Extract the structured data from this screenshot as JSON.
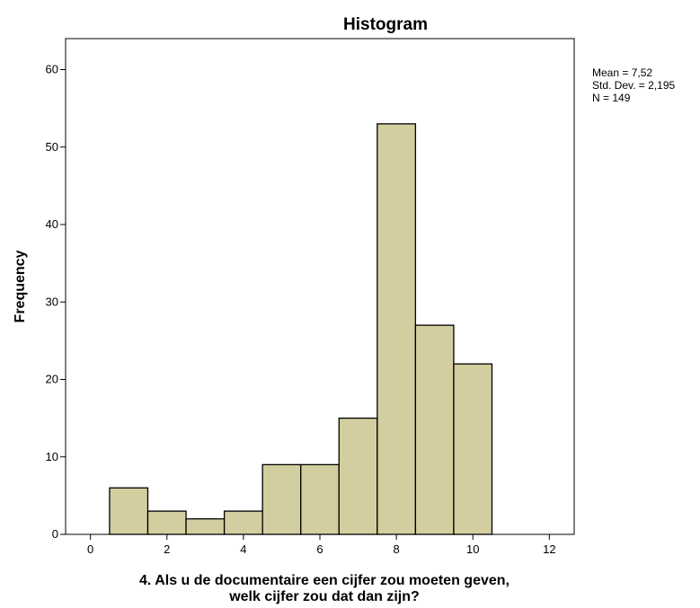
{
  "chart_data": {
    "type": "bar",
    "title": "Histogram",
    "xlabel_lines": [
      "4. Als u de documentaire een cijfer zou moeten geven,",
      "welk cijfer zou dat dan zijn?"
    ],
    "ylabel": "Frequency",
    "bins": [
      {
        "start": 0.5,
        "end": 1.5,
        "count": 6
      },
      {
        "start": 1.5,
        "end": 2.5,
        "count": 3
      },
      {
        "start": 2.5,
        "end": 3.5,
        "count": 2
      },
      {
        "start": 3.5,
        "end": 4.5,
        "count": 3
      },
      {
        "start": 4.5,
        "end": 5.5,
        "count": 9
      },
      {
        "start": 5.5,
        "end": 6.5,
        "count": 9
      },
      {
        "start": 6.5,
        "end": 7.5,
        "count": 15
      },
      {
        "start": 7.5,
        "end": 8.5,
        "count": 53
      },
      {
        "start": 8.5,
        "end": 9.5,
        "count": 27
      },
      {
        "start": 9.5,
        "end": 10.5,
        "count": 22
      }
    ],
    "xlim": [
      -0.65,
      12.65
    ],
    "ylim": [
      0,
      64
    ],
    "x_ticks": [
      0,
      2,
      4,
      6,
      8,
      10,
      12
    ],
    "y_ticks": [
      0,
      10,
      20,
      30,
      40,
      50,
      60
    ],
    "bar_color": "#d3ce9f",
    "bar_edge_color": "#000000",
    "stats": {
      "mean": "Mean = 7,52",
      "std": "Std. Dev. = 2,195",
      "n": "N = 149"
    },
    "legend_position": "right",
    "grid": false
  }
}
